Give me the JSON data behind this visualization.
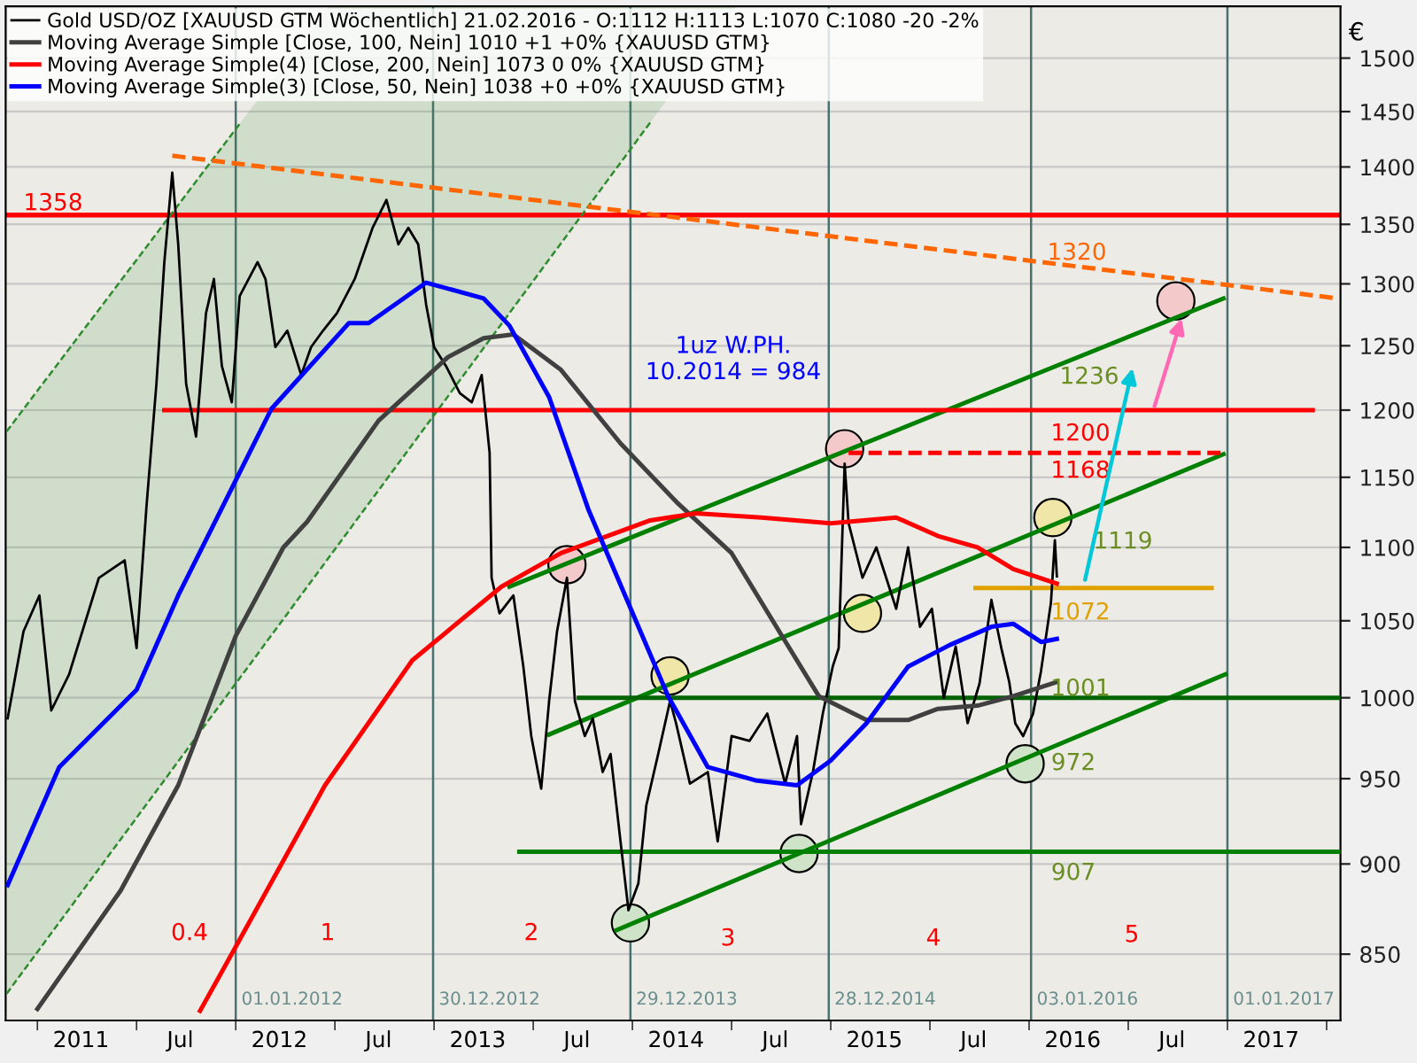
{
  "chart_data": {
    "type": "line",
    "xlim": [
      2010.84,
      2017.57
    ],
    "ylim": [
      815,
      1550
    ],
    "log": "y",
    "xticks": [
      {
        "value": 2011.0,
        "label": null
      },
      {
        "value": 2011.22,
        "label": "2011"
      },
      {
        "value": 2011.5,
        "label": null
      },
      {
        "value": 2011.72,
        "label": "Jul"
      },
      {
        "value": 2012.0,
        "label": null
      },
      {
        "value": 2012.22,
        "label": "2012"
      },
      {
        "value": 2012.5,
        "label": null
      },
      {
        "value": 2012.72,
        "label": "Jul"
      },
      {
        "value": 2013.0,
        "label": null
      },
      {
        "value": 2013.22,
        "label": "2013"
      },
      {
        "value": 2013.5,
        "label": null
      },
      {
        "value": 2013.72,
        "label": "Jul"
      },
      {
        "value": 2014.0,
        "label": null
      },
      {
        "value": 2014.22,
        "label": "2014"
      },
      {
        "value": 2014.5,
        "label": null
      },
      {
        "value": 2014.72,
        "label": "Jul"
      },
      {
        "value": 2015.0,
        "label": null
      },
      {
        "value": 2015.22,
        "label": "2015"
      },
      {
        "value": 2015.5,
        "label": null
      },
      {
        "value": 2015.72,
        "label": "Jul"
      },
      {
        "value": 2016.0,
        "label": null
      },
      {
        "value": 2016.22,
        "label": "2016"
      },
      {
        "value": 2016.5,
        "label": null
      },
      {
        "value": 2016.72,
        "label": "Jul"
      },
      {
        "value": 2017.0,
        "label": null
      },
      {
        "value": 2017.22,
        "label": "2017"
      },
      {
        "value": 2017.5,
        "label": null
      }
    ],
    "yticks": [
      850,
      900,
      950,
      1000,
      1050,
      1100,
      1150,
      1200,
      1250,
      1300,
      1350,
      1400,
      1450,
      1500
    ],
    "ylabel": "€",
    "grid": "y",
    "legend": "top left",
    "series": [
      {
        "name": "Gold USD/OZ [XAUUSD GTM Wöchentlich] 21.02.2016 - O:1112 H:1113 L:1070 C:1080 -20 -2%",
        "color": "#000000",
        "x": [
          2010.85,
          2010.93,
          2011.01,
          2011.07,
          2011.16,
          2011.31,
          2011.44,
          2011.5,
          2011.55,
          2011.6,
          2011.64,
          2011.68,
          2011.71,
          2011.75,
          2011.8,
          2011.85,
          2011.89,
          2011.93,
          2011.98,
          2012.02,
          2012.11,
          2012.15,
          2012.2,
          2012.26,
          2012.33,
          2012.38,
          2012.44,
          2012.51,
          2012.6,
          2012.69,
          2012.76,
          2012.82,
          2012.87,
          2012.92,
          2012.96,
          2013.0,
          2013.06,
          2013.13,
          2013.19,
          2013.24,
          2013.28,
          2013.29,
          2013.33,
          2013.4,
          2013.45,
          2013.49,
          2013.54,
          2013.58,
          2013.62,
          2013.67,
          2013.71,
          2013.76,
          2013.8,
          2013.85,
          2013.89,
          2013.94,
          2013.98,
          2014.03,
          2014.07,
          2014.13,
          2014.19,
          2014.22,
          2014.29,
          2014.38,
          2014.43,
          2014.5,
          2014.59,
          2014.68,
          2014.77,
          2014.83,
          2014.85,
          2014.91,
          2014.96,
          2015.01,
          2015.04,
          2015.07,
          2015.09,
          2015.16,
          2015.23,
          2015.33,
          2015.39,
          2015.45,
          2015.51,
          2015.57,
          2015.63,
          2015.69,
          2015.75,
          2015.81,
          2015.86,
          2015.9,
          2015.93,
          2015.97,
          2016.02,
          2016.06,
          2016.11,
          2016.13,
          2016.14
        ],
        "values": [
          987,
          1043,
          1067,
          992,
          1015,
          1079,
          1091,
          1032,
          1129,
          1220,
          1318,
          1395,
          1333,
          1220,
          1180,
          1276,
          1304,
          1234,
          1206,
          1290,
          1318,
          1304,
          1249,
          1262,
          1227,
          1249,
          1262,
          1276,
          1304,
          1347,
          1371,
          1333,
          1347,
          1333,
          1283,
          1249,
          1234,
          1213,
          1206,
          1227,
          1168,
          1079,
          1055,
          1067,
          1020,
          976,
          944,
          998,
          1043,
          1079,
          998,
          976,
          987,
          954,
          965,
          913,
          874,
          889,
          934,
          965,
          998,
          984,
          947,
          954,
          913,
          976,
          973,
          990,
          947,
          976,
          923,
          954,
          990,
          1020,
          1032,
          1160,
          1117,
          1079,
          1100,
          1058,
          1100,
          1046,
          1058,
          1000,
          1033,
          984,
          1009,
          1064,
          1032,
          1010,
          984,
          976,
          990,
          1017,
          1062,
          1105,
          1080
        ]
      },
      {
        "name": "Moving Average Simple [Close, 100, Nein] 1010 +1 +0% {XAUUSD GTM}",
        "color": "#404040",
        "x": [
          2011.0,
          2011.42,
          2011.71,
          2012.0,
          2012.24,
          2012.36,
          2012.72,
          2013.07,
          2013.25,
          2013.4,
          2013.64,
          2013.94,
          2014.23,
          2014.5,
          2014.74,
          2014.94,
          2015.18,
          2015.39,
          2015.54,
          2015.74,
          2015.92,
          2016.14
        ],
        "values": [
          821,
          885,
          946,
          1040,
          1100,
          1118,
          1192,
          1241,
          1256,
          1259,
          1231,
          1175,
          1131,
          1096,
          1043,
          1001,
          986,
          986,
          993,
          995,
          1001,
          1010
        ]
      },
      {
        "name": "Moving Average Simple(4) [Close, 200, Nein] 1073 0 0% {XAUUSD GTM}",
        "color": "#ff0000",
        "x": [
          2011.82,
          2012.0,
          2012.45,
          2012.89,
          2013.34,
          2013.64,
          2014.09,
          2014.32,
          2014.65,
          2015.0,
          2015.33,
          2015.54,
          2015.74,
          2015.92,
          2016.14
        ],
        "values": [
          820,
          854,
          946,
          1024,
          1073,
          1096,
          1119,
          1124,
          1121,
          1117,
          1121,
          1108,
          1100,
          1085,
          1075
        ]
      },
      {
        "name": "Moving Average Simple(3) [Close, 50, Nein] 1038 +0 +0% {XAUUSD GTM}",
        "color": "#0000ff",
        "x": [
          2010.85,
          2011.11,
          2011.5,
          2011.71,
          2011.91,
          2012.18,
          2012.57,
          2012.67,
          2012.96,
          2013.25,
          2013.38,
          2013.58,
          2013.78,
          2014.18,
          2014.38,
          2014.62,
          2014.83,
          2015.0,
          2015.18,
          2015.39,
          2015.6,
          2015.81,
          2015.92,
          2016.06,
          2016.14
        ],
        "values": [
          888,
          957,
          1005,
          1067,
          1122,
          1201,
          1268,
          1268,
          1301,
          1288,
          1266,
          1210,
          1126,
          1001,
          957,
          949,
          946,
          961,
          984,
          1020,
          1034,
          1046,
          1048,
          1036,
          1038
        ]
      },
      {
        "color": "#2e8b2e",
        "line_style": "dashed",
        "x": [
          2010.845,
          2012.025
        ],
        "values": [
          1184,
          1440
        ]
      },
      {
        "color": "#2e8b2e",
        "line_style": "dashed",
        "x": [
          2010.845,
          2014.09
        ],
        "values": [
          829,
          1440
        ]
      },
      {
        "color": "#ff6600",
        "line_style": "dashed",
        "x": [
          2011.68,
          2017.56
        ],
        "values": [
          1410,
          1288
        ]
      },
      {
        "color": "#008000",
        "x": [
          2013.38,
          2016.98
        ],
        "values": [
          1073,
          1288
        ]
      },
      {
        "color": "#008000",
        "x": [
          2013.58,
          2016.98
        ],
        "values": [
          977,
          1167
        ]
      },
      {
        "color": "#008000",
        "x": [
          2013.92,
          2016.99
        ],
        "values": [
          863,
          1015
        ]
      },
      {
        "color": "#ff0000",
        "x": [
          2011.64,
          2017.43
        ],
        "values": [
          1200,
          1200
        ]
      },
      {
        "color": "#ff0000",
        "line_style": "dashed",
        "x": [
          2015.09,
          2016.98
        ],
        "values": [
          1168,
          1168
        ]
      },
      {
        "color": "#e0a000",
        "x": [
          2015.73,
          2016.92
        ],
        "values": [
          1072,
          1072
        ]
      },
      {
        "color": "#006400",
        "x": [
          2013.73,
          2017.57
        ],
        "values": [
          1000,
          1000
        ]
      },
      {
        "color": "#008000",
        "x": [
          2013.43,
          2017.57
        ],
        "values": [
          907,
          907
        ]
      },
      {
        "type": "scatter",
        "marker": "circle",
        "x": [
          2013.67,
          2013.99,
          2014.19,
          2014.84,
          2015.07,
          2015.16,
          2015.98,
          2016.12,
          2016.74
        ],
        "values": [
          1088,
          867,
          1014,
          906,
          1171,
          1055,
          959,
          1121,
          1286
        ],
        "colors": [
          "#f3c9c9",
          "#cfe3c8",
          "#f0e6a8",
          "#cfe3c8",
          "#f3c9c9",
          "#f0e6a8",
          "#cfe3c8",
          "#f0e6a8",
          "#f3c9c9"
        ]
      }
    ],
    "ref_lines": [
      {
        "axis": "y",
        "value": 1358,
        "color": "#ff0000"
      },
      {
        "axis": "x",
        "value": 2012.0,
        "label": "01.01.2012",
        "color": "#4a7070"
      },
      {
        "axis": "x",
        "value": 2012.995,
        "label": "30.12.2012",
        "color": "#4a7070"
      },
      {
        "axis": "x",
        "value": 2013.99,
        "label": "29.12.2013",
        "color": "#4a7070"
      },
      {
        "axis": "x",
        "value": 2014.99,
        "label": "28.12.2014",
        "color": "#4a7070"
      },
      {
        "axis": "x",
        "value": 2016.01,
        "label": "03.01.2016",
        "color": "#4a7070"
      },
      {
        "axis": "x",
        "value": 2017.0,
        "label": "01.01.2017",
        "color": "#4a7070"
      }
    ],
    "annotations": [
      "1358",
      "1320",
      "1236",
      "1200",
      "1168",
      "1119",
      "1072",
      "1001",
      "972",
      "907",
      "1uz W.PH.\n10.2014 = 984",
      "0.4",
      "1",
      "2",
      "3",
      "4",
      "5"
    ]
  }
}
